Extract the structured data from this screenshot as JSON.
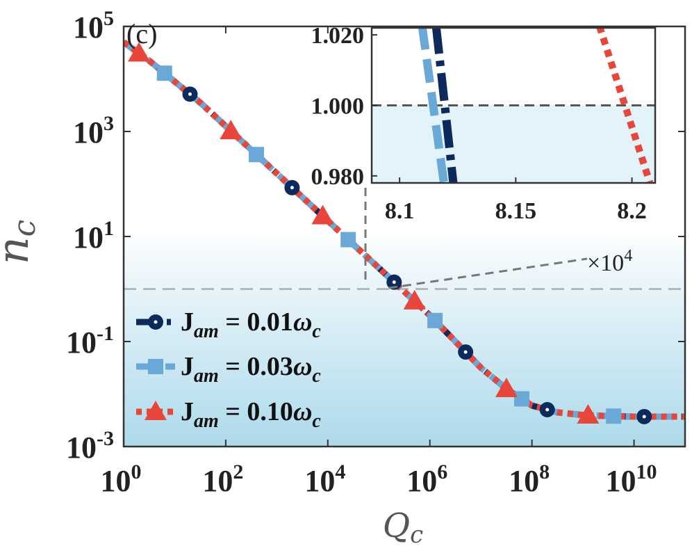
{
  "chart_data": [
    {
      "type": "line",
      "panel_label": "(c)",
      "xlabel": "Q",
      "xlabel_sub": "c",
      "ylabel": "n",
      "ylabel_sub": "c",
      "xscale": "log",
      "yscale": "log",
      "xlim_exp": [
        0,
        11
      ],
      "ylim_exp": [
        -3,
        5
      ],
      "x_ticks": [
        {
          "b": "10",
          "e": "0"
        },
        {
          "b": "10",
          "e": "2"
        },
        {
          "b": "10",
          "e": "4"
        },
        {
          "b": "10",
          "e": "6"
        },
        {
          "b": "10",
          "e": "8"
        },
        {
          "b": "10",
          "e": "10"
        }
      ],
      "y_ticks": [
        {
          "b": "10",
          "e": "5"
        },
        {
          "b": "10",
          "e": "3"
        },
        {
          "b": "10",
          "e": "1"
        },
        {
          "b": "10",
          "e": "-1"
        },
        {
          "b": "10",
          "e": "-3"
        }
      ],
      "threshold_y": 1,
      "shading_from_y_exp": 1,
      "legend_position": "bottom-left",
      "series": [
        {
          "name": "J_am = 0.01ω_c",
          "legend": {
            "main": "J",
            "sub": "am",
            "eq": " = 0.01",
            "sym": "ω",
            "sym_sub": "c"
          },
          "color": "#0d2a5c",
          "style": "dashdot",
          "marker": "circle",
          "x_exp": [
            0,
            0.5,
            1.0,
            1.5,
            2.0,
            2.5,
            3.0,
            3.5,
            4.0,
            4.5,
            5.0,
            5.5,
            6.0,
            6.5,
            7.0,
            7.5,
            8.0,
            8.5,
            9.0,
            9.5,
            10.0,
            10.5,
            11.0
          ],
          "y_exp": [
            4.7,
            4.35,
            3.95,
            3.55,
            3.1,
            2.65,
            2.2,
            1.75,
            1.3,
            0.85,
            0.4,
            -0.05,
            -0.5,
            -1.0,
            -1.5,
            -1.9,
            -2.22,
            -2.35,
            -2.4,
            -2.42,
            -2.43,
            -2.43,
            -2.43
          ],
          "markers_x_exp": [
            1.3,
            3.3,
            5.3,
            6.7,
            8.3,
            10.2
          ]
        },
        {
          "name": "J_am = 0.03ω_c",
          "legend": {
            "main": "J",
            "sub": "am",
            "eq": " = 0.03",
            "sym": "ω",
            "sym_sub": "c"
          },
          "color": "#6aa8d8",
          "style": "longdash",
          "marker": "square",
          "x_exp": [
            0,
            0.5,
            1.0,
            1.5,
            2.0,
            2.5,
            3.0,
            3.5,
            4.0,
            4.5,
            5.0,
            5.5,
            6.0,
            6.5,
            7.0,
            7.5,
            8.0,
            8.5,
            9.0,
            9.5,
            10.0,
            10.5,
            11.0
          ],
          "y_exp": [
            4.7,
            4.35,
            3.95,
            3.55,
            3.1,
            2.65,
            2.2,
            1.75,
            1.3,
            0.85,
            0.4,
            -0.05,
            -0.5,
            -1.0,
            -1.5,
            -1.9,
            -2.22,
            -2.35,
            -2.4,
            -2.42,
            -2.43,
            -2.43,
            -2.43
          ],
          "markers_x_exp": [
            0.8,
            2.6,
            4.4,
            6.1,
            7.8,
            9.6
          ]
        },
        {
          "name": "J_am = 0.10ω_c",
          "legend": {
            "main": "J",
            "sub": "am",
            "eq": " = 0.10",
            "sym": "ω",
            "sym_sub": "c"
          },
          "color": "#e8463a",
          "style": "dotted",
          "marker": "triangle",
          "x_exp": [
            0,
            0.5,
            1.0,
            1.5,
            2.0,
            2.5,
            3.0,
            3.5,
            4.0,
            4.5,
            5.0,
            5.5,
            6.0,
            6.5,
            7.0,
            7.5,
            8.0,
            8.5,
            9.0,
            9.5,
            10.0,
            10.5,
            11.0
          ],
          "y_exp": [
            4.7,
            4.35,
            3.95,
            3.55,
            3.1,
            2.65,
            2.2,
            1.75,
            1.3,
            0.85,
            0.4,
            -0.05,
            -0.5,
            -1.0,
            -1.5,
            -1.9,
            -2.22,
            -2.35,
            -2.4,
            -2.42,
            -2.43,
            -2.43,
            -2.43
          ],
          "markers_x_exp": [
            0.3,
            2.1,
            3.9,
            5.7,
            7.5,
            9.1
          ]
        }
      ]
    },
    {
      "type": "line",
      "role": "inset",
      "x_multiplier_label": "×10",
      "x_multiplier_exp": "4",
      "xlim": [
        8.088,
        8.21
      ],
      "ylim": [
        0.978,
        1.022
      ],
      "x_ticks": [
        "8.1",
        "8.15",
        "8.2"
      ],
      "x_tick_values": [
        8.1,
        8.15,
        8.2
      ],
      "y_ticks": [
        "1.020",
        "1.000",
        "0.980"
      ],
      "y_tick_values": [
        1.02,
        1.0,
        0.98
      ],
      "threshold_y": 1.0,
      "series": [
        {
          "name": "J_am = 0.01ω_c",
          "color": "#0d2a5c",
          "style": "dashdot",
          "x": [
            8.1157,
            8.1232
          ],
          "y": [
            1.0225,
            0.9775
          ]
        },
        {
          "name": "J_am = 0.03ω_c",
          "color": "#6aa8d8",
          "style": "longdash",
          "x": [
            8.1097,
            8.1192
          ],
          "y": [
            1.0225,
            0.9775
          ]
        },
        {
          "name": "J_am = 0.10ω_c",
          "color": "#e8463a",
          "style": "dotted",
          "x": [
            8.186,
            8.208
          ],
          "y": [
            1.0225,
            0.9775
          ]
        }
      ]
    }
  ]
}
